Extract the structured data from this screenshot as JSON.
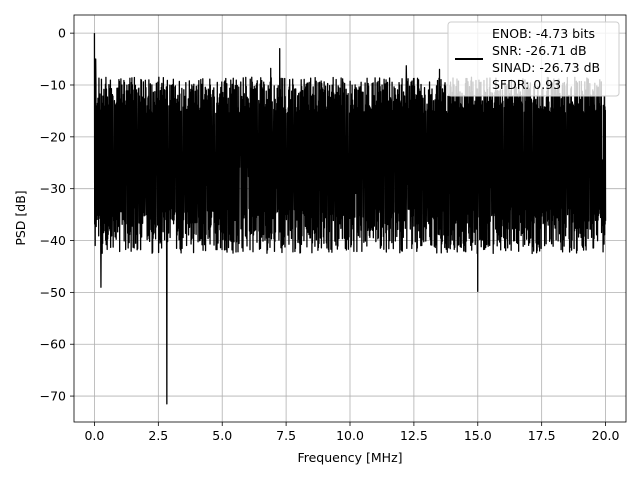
{
  "chart_data": {
    "type": "line",
    "title": "",
    "xlabel": "Frequency [MHz]",
    "ylabel": "PSD [dB]",
    "xlim": [
      -0.8,
      20.8
    ],
    "ylim": [
      -75,
      3.5
    ],
    "grid": true,
    "legend_position": "top-right",
    "x_ticks": [
      0.0,
      2.5,
      5.0,
      7.5,
      10.0,
      12.5,
      15.0,
      17.5,
      20.0
    ],
    "x_tick_labels": [
      "0.0",
      "2.5",
      "5.0",
      "7.5",
      "10.0",
      "12.5",
      "15.0",
      "17.5",
      "20.0"
    ],
    "y_ticks": [
      0,
      -10,
      -20,
      -30,
      -40,
      -50,
      -60,
      -70
    ],
    "y_tick_labels": [
      "0",
      "−10",
      "−20",
      "−30",
      "−40",
      "−50",
      "−60",
      "−70"
    ],
    "legend": {
      "color": "#000000",
      "lines": [
        "ENOB: -4.73 bits",
        "SNR: -26.71 dB",
        "SINAD: -26.73 dB",
        "SFDR: 0.93"
      ]
    },
    "series": [
      {
        "color": "#000000",
        "x_range": [
          0.0,
          20.0
        ],
        "points": 2048,
        "noise_floor_mean": -27,
        "noise_top": -12,
        "noise_bottom": -42,
        "peaks": [
          {
            "x": 0.0,
            "y": 0.0
          },
          {
            "x": 0.05,
            "y": -5.0
          },
          {
            "x": 2.83,
            "y": -71.5
          },
          {
            "x": 0.25,
            "y": -49.0
          },
          {
            "x": 7.25,
            "y": -3.0
          },
          {
            "x": 6.9,
            "y": -6.8
          },
          {
            "x": 15.0,
            "y": -49.8
          },
          {
            "x": 12.2,
            "y": -6.3
          },
          {
            "x": 13.5,
            "y": -7.0
          }
        ]
      }
    ]
  }
}
